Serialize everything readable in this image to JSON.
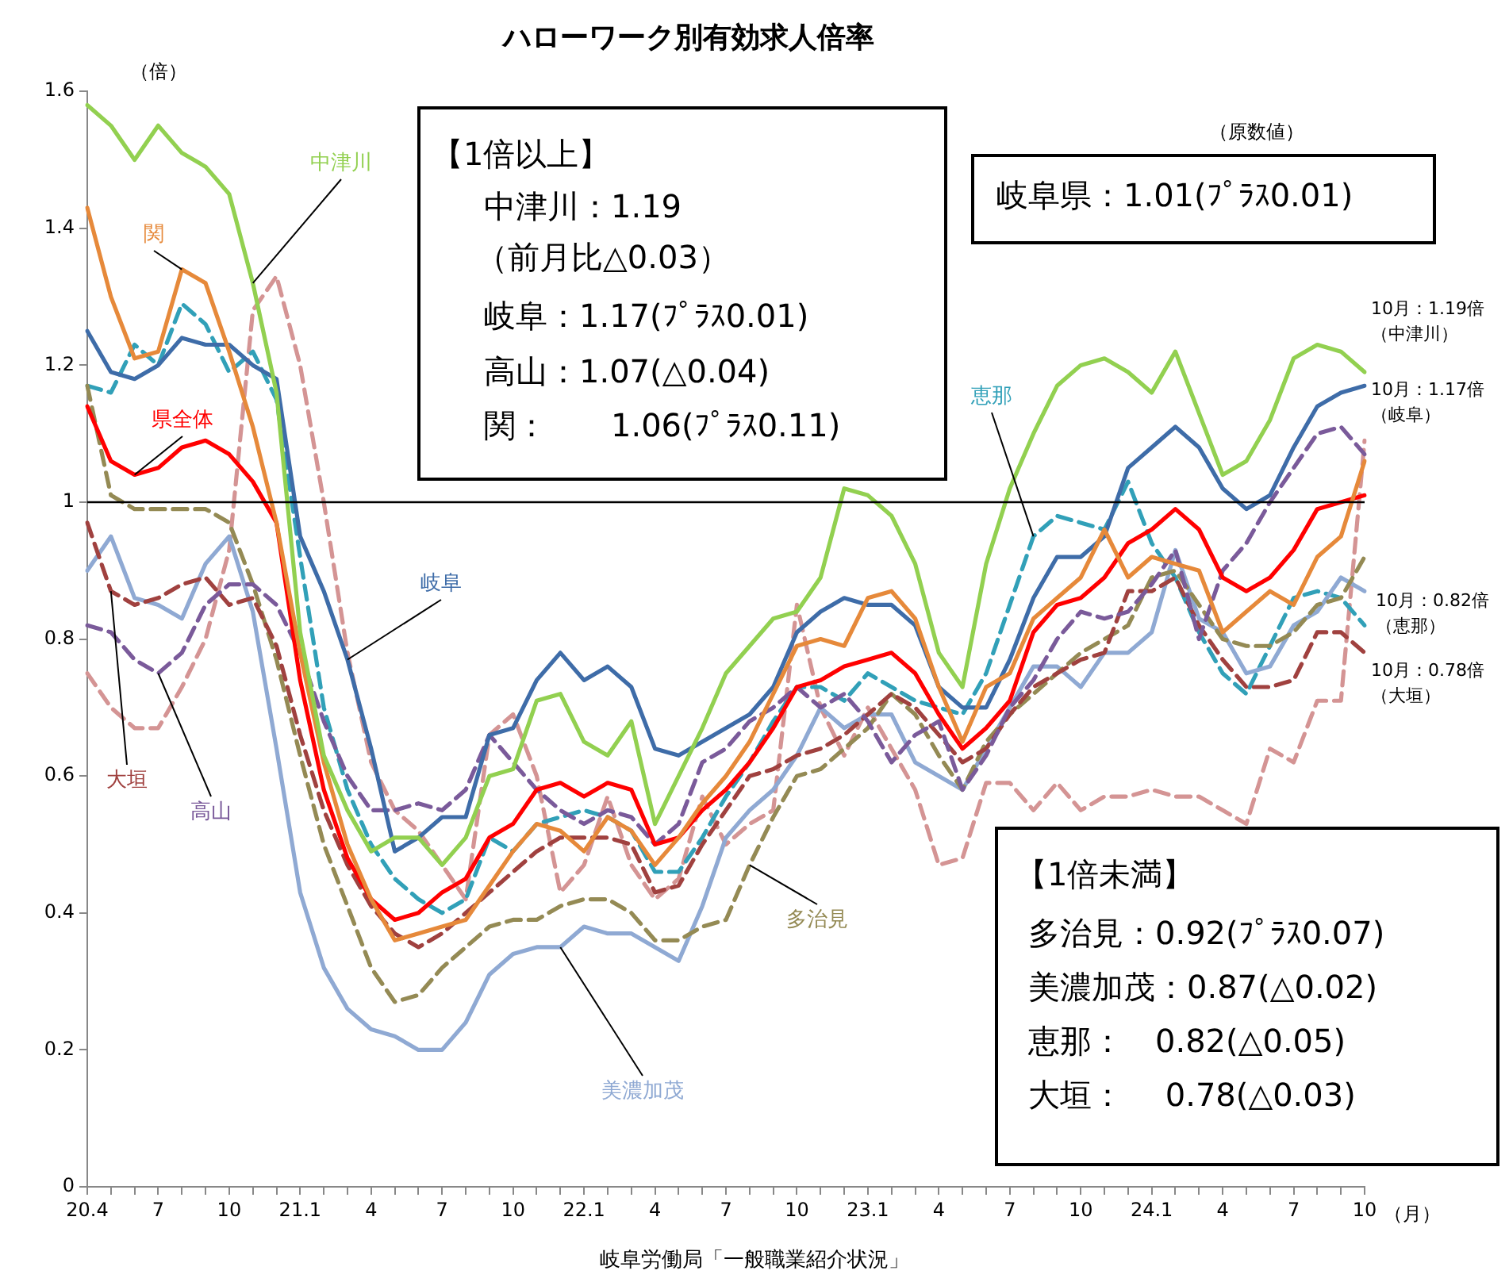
{
  "chart_data": {
    "type": "line",
    "title": "ハローワーク別有効求人倍率",
    "xlabel": "（月）",
    "ylabel": "（倍）",
    "categories": [
      "20.4",
      null,
      null,
      "7",
      null,
      null,
      "10",
      null,
      null,
      "21.1",
      null,
      null,
      "4",
      null,
      null,
      "7",
      null,
      null,
      "10",
      null,
      null,
      "22.1",
      null,
      null,
      "4",
      null,
      null,
      "7",
      null,
      null,
      "10",
      null,
      null,
      "23.1",
      null,
      null,
      "4",
      null,
      null,
      "7",
      null,
      null,
      "10",
      null,
      null,
      "24.1",
      null,
      null,
      "4",
      null,
      null,
      "7",
      null,
      null,
      "10"
    ],
    "ylim": [
      0,
      1.6
    ],
    "yticks": [
      0,
      0.2,
      0.4,
      0.6,
      0.8,
      1,
      1.2,
      1.4,
      1.6
    ],
    "grid": false,
    "legend": false,
    "series": [
      {
        "name": "中津川",
        "color": "#92d050",
        "line_style": "solid",
        "values": [
          1.58,
          1.55,
          1.5,
          1.55,
          1.51,
          1.49,
          1.45,
          1.32,
          1.16,
          0.81,
          0.63,
          0.55,
          0.49,
          0.51,
          0.51,
          0.47,
          0.51,
          0.6,
          0.61,
          0.71,
          0.72,
          0.65,
          0.63,
          0.68,
          0.53,
          0.6,
          0.67,
          0.75,
          0.79,
          0.83,
          0.84,
          0.89,
          1.02,
          1.01,
          0.98,
          0.91,
          0.78,
          0.73,
          0.91,
          1.02,
          1.1,
          1.17,
          1.2,
          1.21,
          1.19,
          1.16,
          1.22,
          1.13,
          1.04,
          1.06,
          1.12,
          1.21,
          1.23,
          1.22,
          1.19
        ]
      },
      {
        "name": "関",
        "color": "#e6893a",
        "line_style": "solid",
        "values": [
          1.43,
          1.3,
          1.21,
          1.22,
          1.34,
          1.32,
          1.22,
          1.11,
          0.97,
          0.78,
          0.62,
          0.5,
          0.42,
          0.36,
          0.37,
          0.38,
          0.39,
          0.44,
          0.49,
          0.53,
          0.52,
          0.49,
          0.54,
          0.52,
          0.47,
          0.51,
          0.56,
          0.6,
          0.65,
          0.72,
          0.79,
          0.8,
          0.79,
          0.86,
          0.87,
          0.83,
          0.73,
          0.65,
          0.73,
          0.75,
          0.83,
          0.86,
          0.89,
          0.96,
          0.89,
          0.92,
          0.91,
          0.9,
          0.81,
          0.84,
          0.87,
          0.85,
          0.92,
          0.95,
          1.06
        ]
      },
      {
        "name": "岐阜",
        "color": "#3e6ca8",
        "line_style": "solid",
        "values": [
          1.25,
          1.19,
          1.18,
          1.2,
          1.24,
          1.23,
          1.23,
          1.2,
          1.18,
          0.95,
          0.87,
          0.77,
          0.64,
          0.49,
          0.51,
          0.54,
          0.54,
          0.66,
          0.67,
          0.74,
          0.78,
          0.74,
          0.76,
          0.73,
          0.64,
          0.63,
          0.65,
          0.67,
          0.69,
          0.73,
          0.81,
          0.84,
          0.86,
          0.85,
          0.85,
          0.82,
          0.73,
          0.7,
          0.7,
          0.77,
          0.86,
          0.92,
          0.92,
          0.95,
          1.05,
          1.08,
          1.11,
          1.08,
          1.02,
          0.99,
          1.01,
          1.08,
          1.14,
          1.16,
          1.17
        ]
      },
      {
        "name": "県全体",
        "color": "#ff0000",
        "line_style": "solid",
        "values": [
          1.14,
          1.06,
          1.04,
          1.05,
          1.08,
          1.09,
          1.07,
          1.03,
          0.97,
          0.74,
          0.58,
          0.48,
          0.42,
          0.39,
          0.4,
          0.43,
          0.45,
          0.51,
          0.53,
          0.58,
          0.59,
          0.57,
          0.59,
          0.58,
          0.5,
          0.51,
          0.55,
          0.58,
          0.62,
          0.67,
          0.73,
          0.74,
          0.76,
          0.77,
          0.78,
          0.75,
          0.69,
          0.64,
          0.67,
          0.71,
          0.81,
          0.85,
          0.86,
          0.89,
          0.94,
          0.96,
          0.99,
          0.96,
          0.89,
          0.87,
          0.89,
          0.93,
          0.99,
          1.0,
          1.01
        ]
      },
      {
        "name": "高山",
        "color": "#7a5a9a",
        "line_style": "dashed",
        "values": [
          0.82,
          0.81,
          0.77,
          0.75,
          0.78,
          0.85,
          0.88,
          0.88,
          0.85,
          0.78,
          0.68,
          0.6,
          0.55,
          0.55,
          0.56,
          0.55,
          0.58,
          0.66,
          0.62,
          0.58,
          0.55,
          0.53,
          0.55,
          0.54,
          0.5,
          0.53,
          0.62,
          0.64,
          0.68,
          0.7,
          0.73,
          0.7,
          0.72,
          0.68,
          0.62,
          0.66,
          0.68,
          0.58,
          0.63,
          0.7,
          0.74,
          0.8,
          0.84,
          0.83,
          0.84,
          0.88,
          0.93,
          0.8,
          0.9,
          0.94,
          1.0,
          1.05,
          1.1,
          1.11,
          1.07
        ]
      },
      {
        "name": "大垣",
        "color": "#a0413f",
        "line_style": "dashed",
        "values": [
          0.97,
          0.87,
          0.85,
          0.86,
          0.88,
          0.89,
          0.85,
          0.86,
          0.79,
          0.66,
          0.55,
          0.47,
          0.41,
          0.37,
          0.35,
          0.37,
          0.4,
          0.43,
          0.46,
          0.49,
          0.51,
          0.51,
          0.51,
          0.5,
          0.43,
          0.44,
          0.5,
          0.55,
          0.6,
          0.61,
          0.63,
          0.64,
          0.66,
          0.69,
          0.72,
          0.7,
          0.66,
          0.62,
          0.64,
          0.69,
          0.73,
          0.75,
          0.77,
          0.78,
          0.87,
          0.87,
          0.89,
          0.82,
          0.77,
          0.73,
          0.73,
          0.74,
          0.81,
          0.81,
          0.78
        ]
      },
      {
        "name": "多治見",
        "color": "#948a54",
        "line_style": "dashed",
        "values": [
          1.17,
          1.01,
          0.99,
          0.99,
          0.99,
          0.99,
          0.97,
          0.88,
          0.77,
          0.63,
          0.5,
          0.41,
          0.32,
          0.27,
          0.28,
          0.32,
          0.35,
          0.38,
          0.39,
          0.39,
          0.41,
          0.42,
          0.42,
          0.4,
          0.36,
          0.36,
          0.38,
          0.39,
          0.47,
          0.54,
          0.6,
          0.61,
          0.64,
          0.67,
          0.72,
          0.69,
          0.63,
          0.58,
          0.65,
          0.69,
          0.72,
          0.75,
          0.78,
          0.8,
          0.82,
          0.89,
          0.9,
          0.85,
          0.8,
          0.79,
          0.79,
          0.81,
          0.85,
          0.86,
          0.92
        ]
      },
      {
        "name": "美濃加茂",
        "color": "#8fa9d3",
        "line_style": "solid",
        "values": [
          0.9,
          0.95,
          0.86,
          0.85,
          0.83,
          0.91,
          0.95,
          0.84,
          0.64,
          0.43,
          0.32,
          0.26,
          0.23,
          0.22,
          0.2,
          0.2,
          0.24,
          0.31,
          0.34,
          0.35,
          0.35,
          0.38,
          0.37,
          0.37,
          0.35,
          0.33,
          0.41,
          0.51,
          0.55,
          0.58,
          0.63,
          0.7,
          0.67,
          0.69,
          0.69,
          0.62,
          0.6,
          0.58,
          0.64,
          0.7,
          0.76,
          0.76,
          0.73,
          0.78,
          0.78,
          0.81,
          0.93,
          0.83,
          0.81,
          0.75,
          0.76,
          0.82,
          0.84,
          0.89,
          0.87
        ]
      },
      {
        "name": "恵那",
        "color": "#31a0b8",
        "line_style": "dashed",
        "values": [
          1.17,
          1.16,
          1.23,
          1.2,
          1.29,
          1.26,
          1.19,
          1.22,
          1.15,
          0.92,
          0.7,
          0.58,
          0.5,
          0.45,
          0.42,
          0.4,
          0.42,
          0.51,
          0.49,
          0.53,
          0.54,
          0.55,
          0.54,
          0.52,
          0.46,
          0.46,
          0.51,
          0.57,
          0.62,
          0.68,
          0.73,
          0.73,
          0.71,
          0.75,
          0.73,
          0.71,
          0.7,
          0.69,
          0.75,
          0.85,
          0.95,
          0.98,
          0.97,
          0.96,
          1.03,
          0.94,
          0.89,
          0.81,
          0.75,
          0.72,
          0.79,
          0.86,
          0.87,
          0.86,
          0.82
        ]
      },
      {
        "color": "#d49494",
        "line_style": "dashed",
        "values": [
          0.75,
          0.7,
          0.67,
          0.67,
          0.73,
          0.8,
          0.93,
          1.28,
          1.33,
          1.2,
          1.0,
          0.78,
          0.62,
          0.55,
          0.52,
          0.47,
          0.42,
          0.66,
          0.69,
          0.6,
          0.43,
          0.47,
          0.57,
          0.47,
          0.42,
          0.45,
          0.57,
          0.5,
          0.53,
          0.55,
          0.85,
          0.7,
          0.63,
          0.7,
          0.64,
          0.58,
          0.47,
          0.48,
          0.59,
          0.59,
          0.55,
          0.59,
          0.55,
          0.57,
          0.57,
          0.58,
          0.57,
          0.57,
          0.55,
          0.53,
          0.64,
          0.62,
          0.71,
          0.71,
          1.09
        ]
      }
    ],
    "ref_lines": [
      {
        "axis": "y",
        "value": 1,
        "color": "#000000"
      }
    ],
    "annotations": [
      "【1倍以上】",
      "中津川：1.19",
      "（前月比△0.03）",
      "岐阜：1.17(ﾌﾟﾗｽ0.01)",
      "高山：1.07(△0.04)",
      "関：　　1.06(ﾌﾟﾗｽ0.11)",
      "（原数値）",
      "岐阜県：1.01(ﾌﾟﾗｽ0.01)",
      "【1倍未満】",
      "多治見：0.92(ﾌﾟﾗｽ0.07)",
      "美濃加茂：0.87(△0.02)",
      "恵那：　0.82(△0.05)",
      "大垣：　 0.78(△0.03)",
      "岐阜労働局「一般職業紹介状況」",
      "10月：1.19倍",
      "（中津川）",
      "10月：1.17倍",
      "（岐阜）",
      "10月：0.82倍",
      "（恵那）",
      "10月：0.78倍",
      "（大垣）"
    ]
  }
}
